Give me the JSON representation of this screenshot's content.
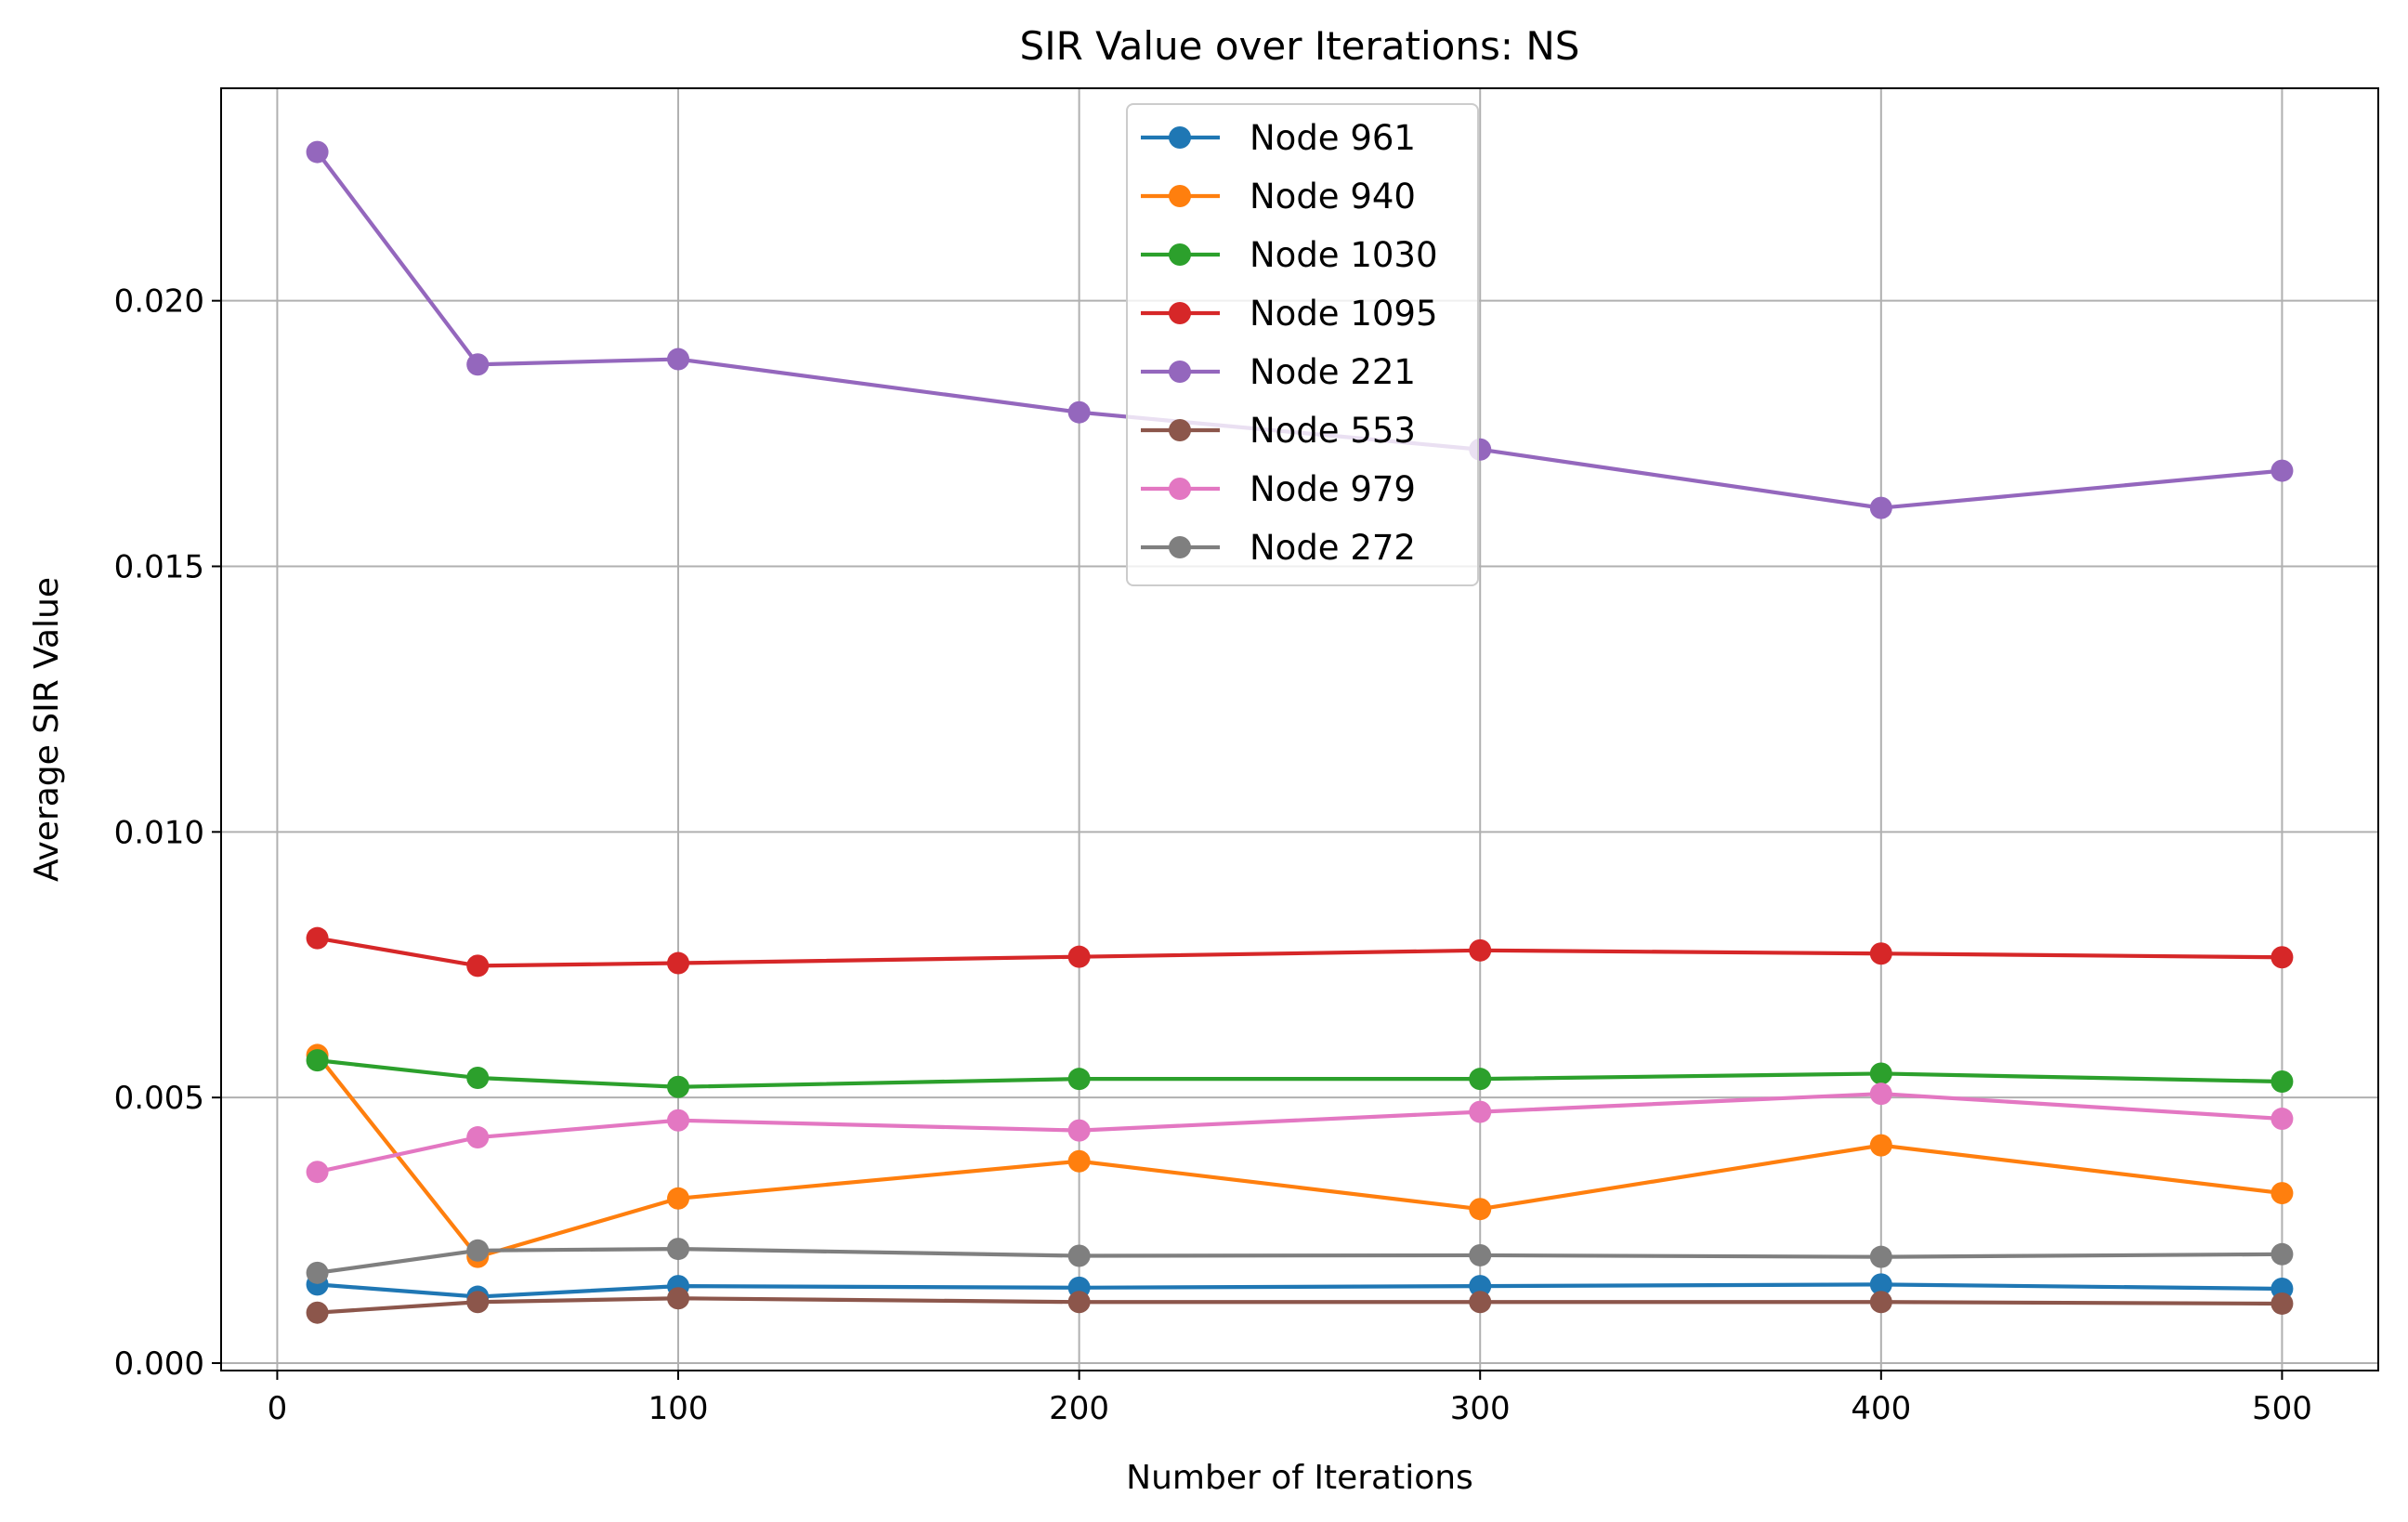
{
  "chart_data": {
    "type": "line",
    "title": "SIR Value over Iterations: NS",
    "xlabel": "Number of Iterations",
    "ylabel": "Average SIR Value",
    "xlim": [
      -14,
      524
    ],
    "ylim": [
      -0.00014,
      0.024
    ],
    "xticks": [
      0,
      100,
      200,
      300,
      400,
      500
    ],
    "xtick_labels": [
      "0",
      "100",
      "200",
      "300",
      "400",
      "500"
    ],
    "yticks": [
      0.0,
      0.005,
      0.01,
      0.015,
      0.02
    ],
    "ytick_labels": [
      "0.000",
      "0.005",
      "0.010",
      "0.015",
      "0.020"
    ],
    "grid": true,
    "legend_position": "upper-center",
    "x": [
      10,
      50,
      100,
      200,
      300,
      400,
      500
    ],
    "series": [
      {
        "name": "Node 961",
        "color": "#1f77b4",
        "values": [
          0.00148,
          0.00125,
          0.00145,
          0.00142,
          0.00145,
          0.00148,
          0.0014
        ]
      },
      {
        "name": "Node 940",
        "color": "#ff7f0e",
        "values": [
          0.0058,
          0.002,
          0.0031,
          0.0038,
          0.0029,
          0.0041,
          0.0032
        ]
      },
      {
        "name": "Node 1030",
        "color": "#2ca02c",
        "values": [
          0.0057,
          0.00537,
          0.0052,
          0.00535,
          0.00535,
          0.00545,
          0.0053
        ]
      },
      {
        "name": "Node 1095",
        "color": "#d62728",
        "values": [
          0.008,
          0.00748,
          0.00753,
          0.00765,
          0.00777,
          0.00771,
          0.00764
        ]
      },
      {
        "name": "Node 221",
        "color": "#9467bd",
        "values": [
          0.0228,
          0.0188,
          0.0189,
          0.0179,
          0.0172,
          0.0161,
          0.0168
        ]
      },
      {
        "name": "Node 553",
        "color": "#8c564b",
        "values": [
          0.00095,
          0.00115,
          0.00122,
          0.00115,
          0.00115,
          0.00115,
          0.00112
        ]
      },
      {
        "name": "Node 979",
        "color": "#e377c2",
        "values": [
          0.0036,
          0.00425,
          0.00457,
          0.00438,
          0.00473,
          0.00507,
          0.0046
        ]
      },
      {
        "name": "Node 272",
        "color": "#7f7f7f",
        "values": [
          0.0017,
          0.00212,
          0.00215,
          0.00202,
          0.00203,
          0.002,
          0.00205
        ]
      }
    ]
  }
}
